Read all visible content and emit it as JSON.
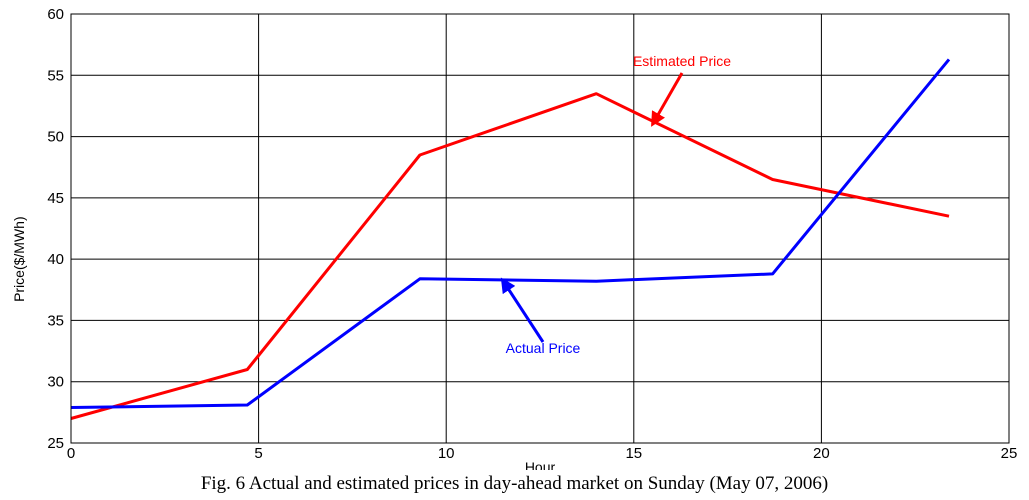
{
  "chart_data": {
    "type": "line",
    "xlabel": "Hour",
    "ylabel": "Price($/MWh)",
    "xlim": [
      0,
      25
    ],
    "ylim": [
      25,
      60
    ],
    "xticks": [
      "0",
      "5",
      "10",
      "15",
      "20",
      "25"
    ],
    "yticks": [
      "25",
      "30",
      "35",
      "40",
      "45",
      "50",
      "55",
      "60"
    ],
    "grid": true,
    "series": [
      {
        "name": "Estimated Price",
        "color": "#ff0000",
        "x": [
          0,
          4.7,
          9.3,
          14,
          18.7,
          23.4
        ],
        "y": [
          27.0,
          31.0,
          48.5,
          53.5,
          46.5,
          43.5
        ]
      },
      {
        "name": "Actual Price",
        "color": "#0000ff",
        "x": [
          0,
          4.7,
          9.3,
          14,
          18.7,
          23.4
        ],
        "y": [
          27.9,
          28.1,
          38.4,
          38.2,
          38.8,
          56.3
        ]
      }
    ],
    "annotations": [
      {
        "text": "Estimated Price",
        "color": "#ff0000",
        "target_x": 15.5,
        "target_y": 51.0
      },
      {
        "text": "Actual Price",
        "color": "#0000ff",
        "target_x": 11.5,
        "target_y": 38.3
      }
    ]
  },
  "caption": "Fig. 6 Actual and estimated prices in day-ahead market on Sunday (May 07, 2006)"
}
